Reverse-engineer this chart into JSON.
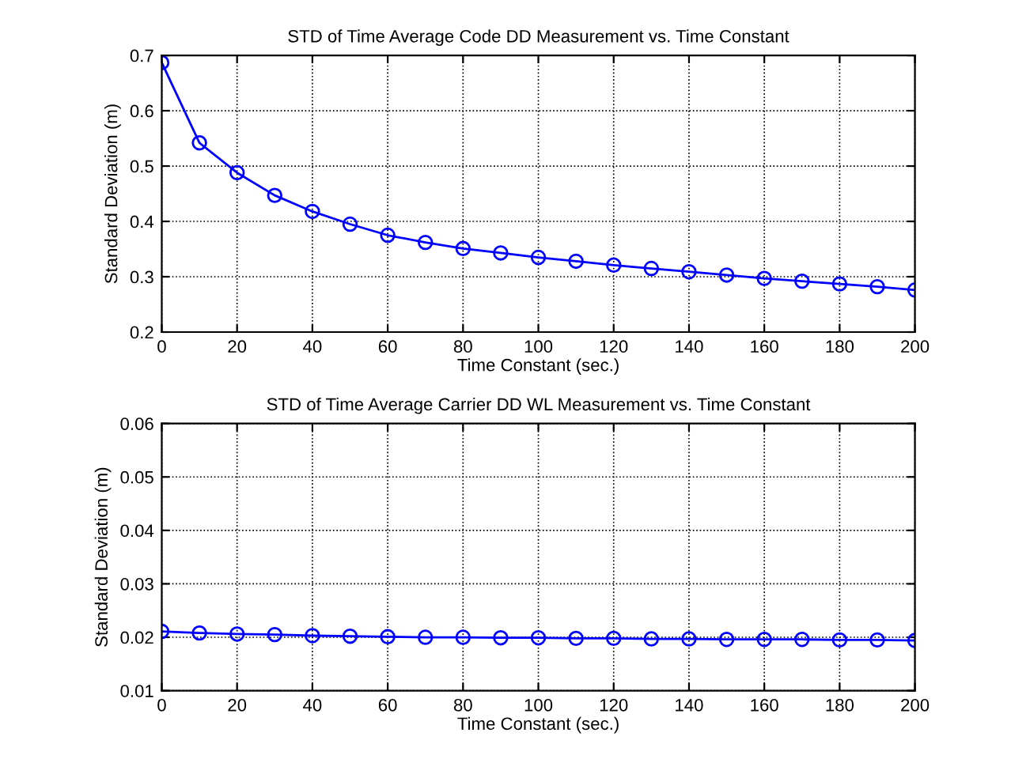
{
  "chart_data": [
    {
      "type": "line",
      "title": "STD of Time Average Code DD Measurement vs. Time Constant",
      "xlabel": "Time Constant (sec.)",
      "ylabel": "Standard Deviation (m)",
      "x": [
        0,
        10,
        20,
        30,
        40,
        50,
        60,
        70,
        80,
        90,
        100,
        110,
        120,
        130,
        140,
        150,
        160,
        170,
        180,
        190,
        200
      ],
      "series": [
        {
          "color": "#0000ff",
          "values": [
            0.687,
            0.542,
            0.488,
            0.447,
            0.418,
            0.395,
            0.375,
            0.362,
            0.351,
            0.343,
            0.335,
            0.328,
            0.321,
            0.315,
            0.309,
            0.303,
            0.297,
            0.292,
            0.287,
            0.282,
            0.276
          ]
        }
      ],
      "xlim": [
        0,
        200
      ],
      "xticks": [
        0,
        20,
        40,
        60,
        80,
        100,
        120,
        140,
        160,
        180,
        200
      ],
      "ylim": [
        0.2,
        0.7
      ],
      "yticks": [
        0.2,
        0.3,
        0.4,
        0.5,
        0.6,
        0.7
      ],
      "grid": true,
      "marker": "circle",
      "line_style": "solid"
    },
    {
      "type": "line",
      "title": "STD of Time Average Carrier DD WL Measurement vs. Time Constant",
      "xlabel": "Time Constant (sec.)",
      "ylabel": "Standard Deviation (m)",
      "x": [
        0,
        10,
        20,
        30,
        40,
        50,
        60,
        70,
        80,
        90,
        100,
        110,
        120,
        130,
        140,
        150,
        160,
        170,
        180,
        190,
        200
      ],
      "series": [
        {
          "color": "#0000ff",
          "values": [
            0.0211,
            0.0208,
            0.0206,
            0.0205,
            0.0203,
            0.0202,
            0.0201,
            0.02,
            0.02,
            0.0199,
            0.0199,
            0.0198,
            0.0198,
            0.0197,
            0.0197,
            0.0196,
            0.0196,
            0.0196,
            0.0195,
            0.0195,
            0.0194
          ]
        }
      ],
      "xlim": [
        0,
        200
      ],
      "xticks": [
        0,
        20,
        40,
        60,
        80,
        100,
        120,
        140,
        160,
        180,
        200
      ],
      "ylim": [
        0.01,
        0.06
      ],
      "yticks": [
        0.01,
        0.02,
        0.03,
        0.04,
        0.05,
        0.06
      ],
      "grid": true,
      "marker": "circle",
      "line_style": "solid"
    }
  ]
}
